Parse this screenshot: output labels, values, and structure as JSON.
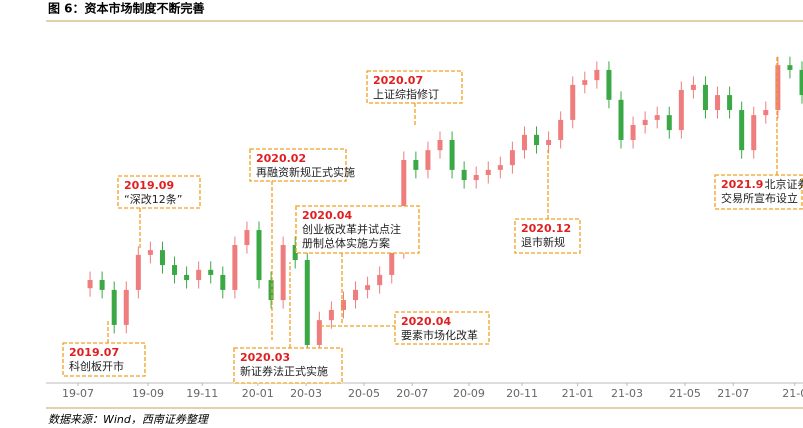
{
  "chart_data": {
    "type": "candlestick",
    "title": "图 6：资本市场制度不断完善",
    "source": "数据来源：Wind，西南证券整理",
    "up_color": "#ef7d7d",
    "down_color": "#3aa845",
    "xlim": [
      -1,
      59
    ],
    "ylim": [
      0,
      100
    ],
    "xticks": [
      {
        "value": -1,
        "label": "19-07"
      },
      {
        "value": 4.8,
        "label": "19-09"
      },
      {
        "value": 9.3,
        "label": "19-11"
      },
      {
        "value": 13.9,
        "label": "20-01"
      },
      {
        "value": 17.9,
        "label": "20-03"
      },
      {
        "value": 22.7,
        "label": "20-05"
      },
      {
        "value": 26.7,
        "label": "20-07"
      },
      {
        "value": 31.4,
        "label": "20-09"
      },
      {
        "value": 35.8,
        "label": "20-11"
      },
      {
        "value": 40.4,
        "label": "21-01"
      },
      {
        "value": 44.5,
        "label": "21-03"
      },
      {
        "value": 49.3,
        "label": "21-05"
      },
      {
        "value": 53.3,
        "label": "21-07"
      },
      {
        "value": 58.4,
        "label": "21-0"
      }
    ],
    "open": [
      27.0,
      29.4,
      26.5,
      16.2,
      26.5,
      36.8,
      38.2,
      33.8,
      30.9,
      29.4,
      32.4,
      30.9,
      26.5,
      39.7,
      44.1,
      29.4,
      23.5,
      39.7,
      35.3,
      10.3,
      17.6,
      20.6,
      23.5,
      26.5,
      27.9,
      30.9,
      38.2,
      64.7,
      61.8,
      67.6,
      70.6,
      61.8,
      58.8,
      60.3,
      61.8,
      63.2,
      67.6,
      72.1,
      69.1,
      70.6,
      76.5,
      86.8,
      88.2,
      91.2,
      82.4,
      70.6,
      75.0,
      76.5,
      77.9,
      73.5,
      85.3,
      86.8,
      79.4,
      83.8,
      79.4,
      67.6,
      77.9,
      79.4,
      92.6,
      91.2
    ],
    "high": [
      31.9,
      31.9,
      29.0,
      29.0,
      39.3,
      40.7,
      40.7,
      36.3,
      33.4,
      34.9,
      34.9,
      33.4,
      42.2,
      46.6,
      46.6,
      31.9,
      42.2,
      42.2,
      37.8,
      20.1,
      23.1,
      26.0,
      29.0,
      30.4,
      33.4,
      40.7,
      67.2,
      67.2,
      70.1,
      73.1,
      73.1,
      64.3,
      62.8,
      64.3,
      65.7,
      70.1,
      74.6,
      74.6,
      73.1,
      79.0,
      89.3,
      90.7,
      93.7,
      93.7,
      84.9,
      77.5,
      79.0,
      80.4,
      80.4,
      87.8,
      89.3,
      89.3,
      86.3,
      86.3,
      81.9,
      80.4,
      81.9,
      95.1,
      95.1,
      93.7
    ],
    "low": [
      24.5,
      24.0,
      13.7,
      13.7,
      24.0,
      34.3,
      31.3,
      28.4,
      26.9,
      26.9,
      28.4,
      24.0,
      24.0,
      37.2,
      26.9,
      21.0,
      21.0,
      32.8,
      7.8,
      7.8,
      15.1,
      18.1,
      21.0,
      24.0,
      25.4,
      28.4,
      35.7,
      59.3,
      59.3,
      65.1,
      59.3,
      56.3,
      56.3,
      57.8,
      59.3,
      60.7,
      65.1,
      66.6,
      66.6,
      68.1,
      74.0,
      84.3,
      85.7,
      79.9,
      68.1,
      68.1,
      72.5,
      74.0,
      71.0,
      71.0,
      82.8,
      76.9,
      76.9,
      76.9,
      65.1,
      65.1,
      75.4,
      76.9,
      88.7,
      81.3
    ],
    "close": [
      29.4,
      26.5,
      16.2,
      26.5,
      36.8,
      38.2,
      33.8,
      30.9,
      29.4,
      32.4,
      30.9,
      26.5,
      39.7,
      44.1,
      29.4,
      23.5,
      39.7,
      35.3,
      10.3,
      17.6,
      20.6,
      23.5,
      26.5,
      27.9,
      30.9,
      38.2,
      64.7,
      61.8,
      67.6,
      70.6,
      61.8,
      58.8,
      60.3,
      61.8,
      63.2,
      67.6,
      72.1,
      69.1,
      70.6,
      76.5,
      86.8,
      88.2,
      91.2,
      82.4,
      70.6,
      75.0,
      76.5,
      77.9,
      73.5,
      85.3,
      86.8,
      79.4,
      83.8,
      79.4,
      67.6,
      77.9,
      79.4,
      92.6,
      91.2,
      83.8
    ],
    "annotations": [
      {
        "date": "2019.07",
        "text": [
          "科创板开市"
        ]
      },
      {
        "date": "2019.09",
        "text": [
          "“深改12条”"
        ]
      },
      {
        "date": "2020.02",
        "text": [
          "再融资新规正式实施"
        ]
      },
      {
        "date": "2020.03",
        "text": [
          "新证券法正式实施"
        ]
      },
      {
        "date": "2020.04",
        "text": [
          "创业板改革并试点注",
          "册制总体实施方案"
        ]
      },
      {
        "date": "2020.04",
        "text": [
          "要素市场化改革"
        ]
      },
      {
        "date": "2020.07",
        "text": [
          "上证综指修订"
        ]
      },
      {
        "date": "2020.12",
        "text": [
          "退市新规"
        ]
      },
      {
        "date": "2021.9",
        "text": [
          "北京证券",
          "交易所宣布设立"
        ],
        "date_inline": true
      }
    ]
  }
}
